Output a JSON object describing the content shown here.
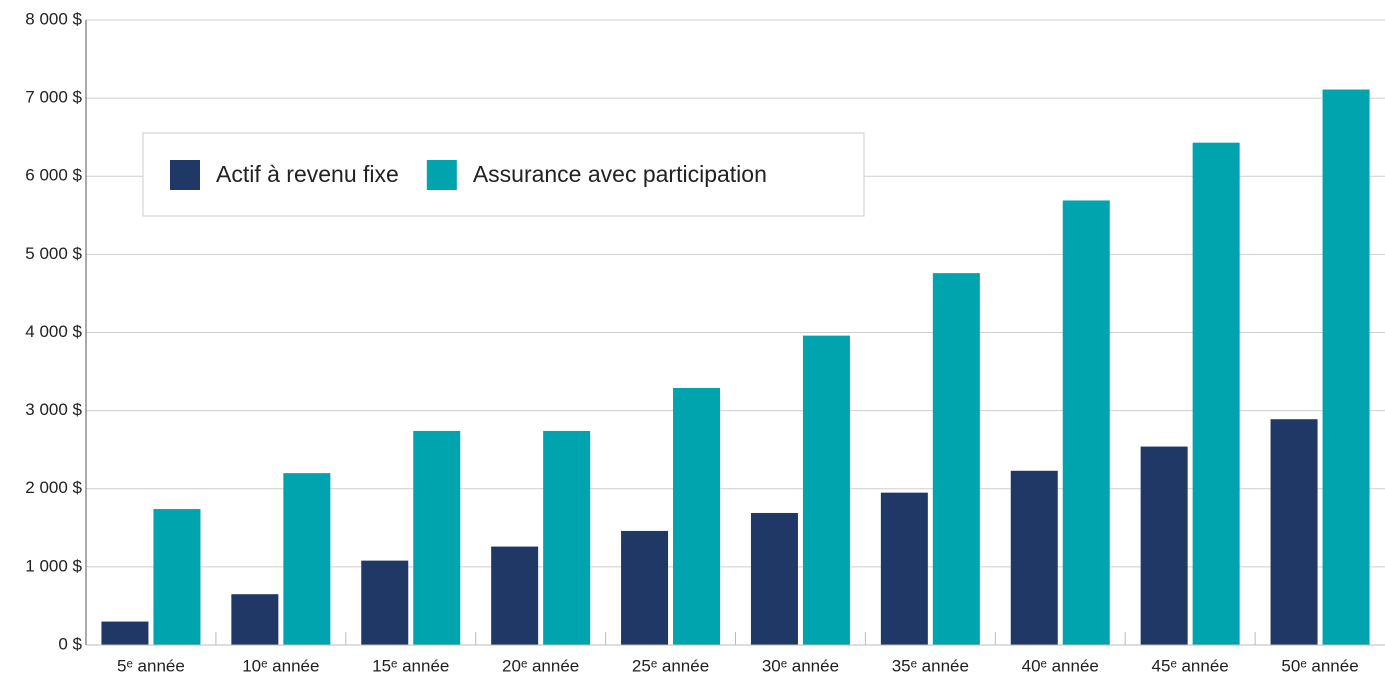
{
  "chart_data": {
    "type": "bar",
    "categories": [
      "5ᵉ année",
      "10ᵉ année",
      "15ᵉ année",
      "20ᵉ année",
      "25ᵉ année",
      "30ᵉ année",
      "35ᵉ année",
      "40ᵉ année",
      "45ᵉ année",
      "50ᵉ année"
    ],
    "series": [
      {
        "name": "Actif à revenu fixe",
        "color": "#1f3866",
        "values": [
          300,
          650,
          1080,
          1260,
          1460,
          1690,
          1950,
          2230,
          2540,
          2890
        ]
      },
      {
        "name": "Assurance avec participation",
        "color": "#00a4ae",
        "values": [
          1740,
          2200,
          2740,
          2740,
          3290,
          3960,
          4760,
          5690,
          6430,
          7110
        ]
      }
    ],
    "ylim": [
      0,
      8000
    ],
    "yticks": [
      {
        "value": 0,
        "label": "0 $"
      },
      {
        "value": 1000,
        "label": "1 000 $"
      },
      {
        "value": 2000,
        "label": "2 000 $"
      },
      {
        "value": 3000,
        "label": "3 000 $"
      },
      {
        "value": 4000,
        "label": "4 000 $"
      },
      {
        "value": 5000,
        "label": "5 000 $"
      },
      {
        "value": 6000,
        "label": "6 000 $"
      },
      {
        "value": 7000,
        "label": "7 000 $"
      },
      {
        "value": 8000,
        "label": "8 000 $"
      }
    ],
    "grid": true,
    "legend": "upper left"
  }
}
